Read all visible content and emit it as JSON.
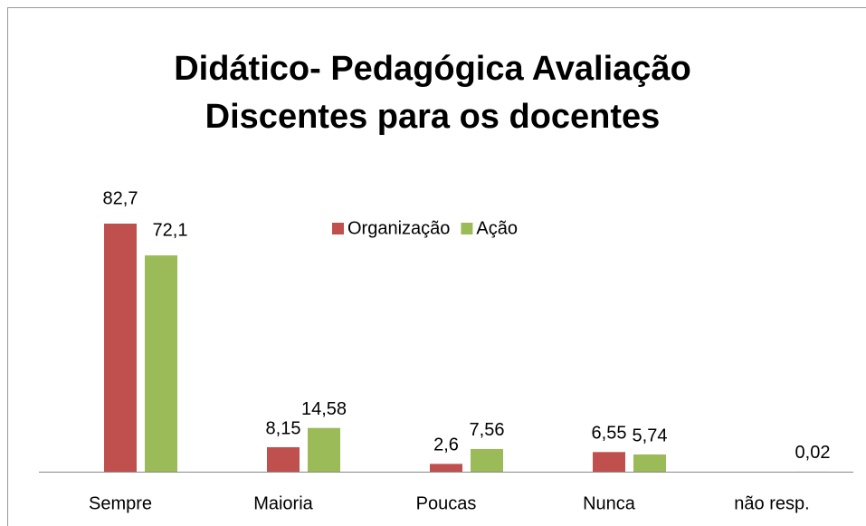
{
  "chart_data": {
    "type": "bar",
    "title": [
      "Didático- Pedagógica Avaliação",
      "Discentes para os docentes"
    ],
    "categories": [
      "Sempre",
      "Maioria",
      "Poucas",
      "Nunca",
      "não resp."
    ],
    "series": [
      {
        "name": "Organização",
        "color": "#c0504d",
        "values": [
          82.7,
          8.15,
          2.6,
          6.55,
          null
        ],
        "value_labels": [
          "82,7",
          "8,15",
          "2,6",
          "6,55",
          null
        ]
      },
      {
        "name": "Ação",
        "color": "#9bbb59",
        "values": [
          72.1,
          14.58,
          7.56,
          5.74,
          0.02
        ],
        "value_labels": [
          "72,1",
          "14,58",
          "7,56",
          "5,74",
          "0,02"
        ]
      }
    ]
  }
}
